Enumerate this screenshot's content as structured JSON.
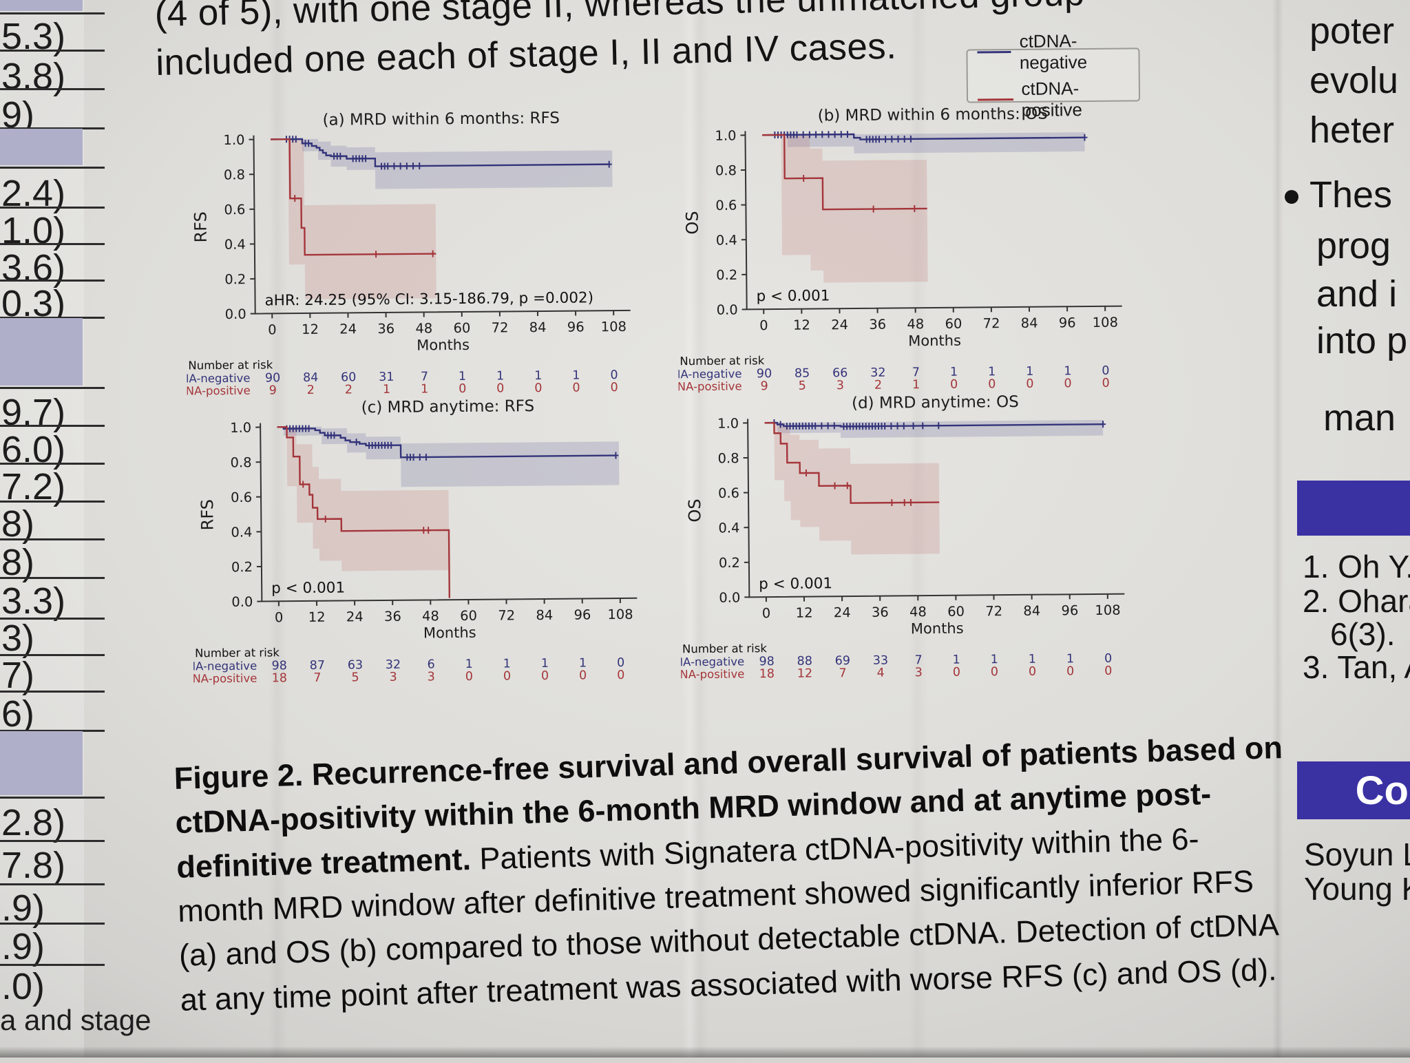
{
  "page": {
    "top_text_line1": "(4 of 5), with one stage II, whereas the unmatched group",
    "top_text_line2": "included one each of stage I, II and IV cases.",
    "caption_bold": "Figure 2. Recurrence-free survival and overall survival of patients based on ctDNA-positivity within the 6-month MRD window and at anytime post-definitive treatment.",
    "caption_rest": " Patients with Signatera ctDNA-positivity within the 6- month MRD window after definitive treatment showed significantly inferior RFS (a) and OS (b) compared to those without detectable ctDNA. Detection of ctDNA at any time point after treatment was associated with worse RFS (c) and OS (d)."
  },
  "legend": {
    "items": [
      {
        "label": "ctDNA-negative",
        "color": "#33337a"
      },
      {
        "label": "ctDNA-positive",
        "color": "#a4353a"
      }
    ]
  },
  "colors": {
    "negative": "#33337a",
    "positive": "#a4353a",
    "ci_negative": "rgba(85,85,150,0.20)",
    "ci_positive": "rgba(190,105,105,0.20)",
    "axis": "#333333",
    "band_lavender": "#b0afc9",
    "bar_indigo": "#3a31a3"
  },
  "chart_data": [
    {
      "id": "a",
      "type": "line",
      "subtype": "kaplan-meier",
      "title": "(a) MRD within 6 months: RFS",
      "ylabel": "RFS",
      "xlabel": "Months",
      "xticks": [
        0,
        12,
        24,
        36,
        48,
        60,
        72,
        84,
        96,
        108
      ],
      "yticks": [
        0.0,
        0.2,
        0.4,
        0.6,
        0.8,
        1.0
      ],
      "xlim": [
        0,
        114
      ],
      "ylim": [
        0,
        1.02
      ],
      "annotation": "aHR: 24.25 (95% CI: 3.15-186.79, p =0.002)",
      "series": [
        {
          "name": "ctDNA-negative",
          "points": [
            [
              0,
              1.0
            ],
            [
              10,
              0.975
            ],
            [
              13,
              0.96
            ],
            [
              14.5,
              0.95
            ],
            [
              15.5,
              0.935
            ],
            [
              16.5,
              0.92
            ],
            [
              17.5,
              0.905
            ],
            [
              19,
              0.9
            ],
            [
              24,
              0.885
            ],
            [
              33,
              0.84
            ],
            [
              107,
              0.84
            ]
          ],
          "censors": [
            5,
            6,
            7,
            8,
            11,
            12,
            20,
            21,
            22,
            26,
            27,
            28,
            29,
            30,
            35,
            36,
            37,
            39,
            41,
            43,
            45,
            47,
            107
          ],
          "ci": [
            [
              10,
              0.93,
              1.0
            ],
            [
              15,
              0.88,
              0.985
            ],
            [
              19,
              0.84,
              0.96
            ],
            [
              24,
              0.82,
              0.95
            ],
            [
              33,
              0.71,
              0.92
            ],
            [
              108,
              0.72,
              0.93
            ]
          ]
        },
        {
          "name": "ctDNA-positive",
          "points": [
            [
              0,
              1.0
            ],
            [
              6,
              0.66
            ],
            [
              9.5,
              0.49
            ],
            [
              10.5,
              0.335
            ],
            [
              52,
              0.335
            ]
          ],
          "censors": [
            7.5,
            33,
            51
          ],
          "ci": [
            [
              5.5,
              0.28,
              1.0
            ],
            [
              10.5,
              0.08,
              0.62
            ],
            [
              52,
              0.09,
              0.61
            ]
          ]
        }
      ],
      "at_risk": {
        "label": "Number at risk",
        "rows": [
          {
            "name": "ctDNA-negative",
            "values": [
              90,
              84,
              60,
              31,
              7,
              1,
              1,
              1,
              1,
              0
            ]
          },
          {
            "name": "ctDNA-positive",
            "values": [
              9,
              2,
              2,
              1,
              1,
              0,
              0,
              0,
              0,
              0
            ]
          }
        ]
      }
    },
    {
      "id": "b",
      "type": "line",
      "subtype": "kaplan-meier",
      "title": "(b) MRD within 6 months: OS",
      "ylabel": "OS",
      "xlabel": "Months",
      "xticks": [
        0,
        12,
        24,
        36,
        48,
        60,
        72,
        84,
        96,
        108
      ],
      "yticks": [
        0.0,
        0.2,
        0.4,
        0.6,
        0.8,
        1.0
      ],
      "xlim": [
        0,
        114
      ],
      "ylim": [
        0,
        1.02
      ],
      "annotation": "p < 0.001",
      "series": [
        {
          "name": "ctDNA-negative",
          "points": [
            [
              0,
              1.0
            ],
            [
              29,
              0.98
            ],
            [
              31,
              0.97
            ],
            [
              102,
              0.97
            ]
          ],
          "censors": [
            4,
            5,
            6,
            7,
            8,
            9,
            10,
            11,
            13,
            15,
            17,
            19,
            21,
            23,
            25,
            27,
            33,
            34,
            35,
            36,
            37,
            39,
            41,
            43,
            45,
            47,
            102
          ],
          "ci": [
            [
              8,
              0.93,
              1.0
            ],
            [
              29,
              0.89,
              1.0
            ],
            [
              102,
              0.89,
              1.0
            ]
          ]
        },
        {
          "name": "ctDNA-positive",
          "points": [
            [
              0,
              1.0
            ],
            [
              7,
              0.75
            ],
            [
              19,
              0.57
            ],
            [
              52,
              0.57
            ]
          ],
          "censors": [
            13,
            35,
            48
          ],
          "ci": [
            [
              6,
              0.31,
              1.0
            ],
            [
              15,
              0.22,
              0.92
            ],
            [
              19,
              0.15,
              0.85
            ],
            [
              52,
              0.15,
              0.85
            ]
          ]
        }
      ],
      "at_risk": {
        "label": "Number at risk",
        "rows": [
          {
            "name": "ctDNA-negative",
            "values": [
              90,
              85,
              66,
              32,
              7,
              1,
              1,
              1,
              1,
              0
            ]
          },
          {
            "name": "ctDNA-positive",
            "values": [
              9,
              5,
              3,
              2,
              1,
              0,
              0,
              0,
              0,
              0
            ]
          }
        ]
      }
    },
    {
      "id": "c",
      "type": "line",
      "subtype": "kaplan-meier",
      "title": "(c) MRD anytime: RFS",
      "ylabel": "RFS",
      "xlabel": "Months",
      "xticks": [
        0,
        12,
        24,
        36,
        48,
        60,
        72,
        84,
        96,
        108
      ],
      "yticks": [
        0.0,
        0.2,
        0.4,
        0.6,
        0.8,
        1.0
      ],
      "xlim": [
        0,
        114
      ],
      "ylim": [
        0,
        1.02
      ],
      "annotation": "p < 0.001",
      "series": [
        {
          "name": "ctDNA-negative",
          "points": [
            [
              0,
              1.0
            ],
            [
              2,
              0.99
            ],
            [
              12,
              0.98
            ],
            [
              13.5,
              0.965
            ],
            [
              15,
              0.95
            ],
            [
              20,
              0.935
            ],
            [
              21.5,
              0.92
            ],
            [
              23,
              0.91
            ],
            [
              26,
              0.9
            ],
            [
              28,
              0.89
            ],
            [
              39,
              0.82
            ],
            [
              107,
              0.82
            ]
          ],
          "censors": [
            3,
            4,
            5,
            6,
            7,
            8,
            9,
            10,
            16,
            17,
            18,
            25,
            29,
            30,
            31,
            32,
            33,
            34,
            35,
            36,
            41,
            42,
            43,
            45,
            47,
            107
          ],
          "ci": [
            [
              2,
              0.95,
              1.0
            ],
            [
              14,
              0.9,
              0.99
            ],
            [
              22,
              0.85,
              0.96
            ],
            [
              28,
              0.81,
              0.94
            ],
            [
              39,
              0.65,
              0.9
            ],
            [
              108,
              0.66,
              0.9
            ]
          ]
        },
        {
          "name": "ctDNA-positive",
          "points": [
            [
              0,
              1.0
            ],
            [
              3,
              0.94
            ],
            [
              5,
              0.83
            ],
            [
              7,
              0.67
            ],
            [
              10,
              0.61
            ],
            [
              11,
              0.535
            ],
            [
              12.5,
              0.47
            ],
            [
              20,
              0.4
            ],
            [
              54,
              0.01
            ]
          ],
          "censors": [
            8,
            15,
            46,
            47.5
          ],
          "ci": [
            [
              3,
              0.66,
              1.0
            ],
            [
              6,
              0.45,
              0.9
            ],
            [
              11,
              0.3,
              0.77
            ],
            [
              13,
              0.23,
              0.7
            ],
            [
              20,
              0.17,
              0.63
            ],
            [
              54,
              0.17,
              0.63
            ]
          ]
        }
      ],
      "at_risk": {
        "label": "Number at risk",
        "rows": [
          {
            "name": "ctDNA-negative",
            "values": [
              98,
              87,
              63,
              32,
              6,
              1,
              1,
              1,
              1,
              0
            ]
          },
          {
            "name": "ctDNA-positive",
            "values": [
              18,
              7,
              5,
              3,
              3,
              0,
              0,
              0,
              0,
              0
            ]
          }
        ]
      }
    },
    {
      "id": "d",
      "type": "line",
      "subtype": "kaplan-meier",
      "title": "(d) MRD anytime: OS",
      "ylabel": "OS",
      "xlabel": "Months",
      "xticks": [
        0,
        12,
        24,
        36,
        48,
        60,
        72,
        84,
        96,
        108
      ],
      "yticks": [
        0.0,
        0.2,
        0.4,
        0.6,
        0.8,
        1.0
      ],
      "xlim": [
        0,
        114
      ],
      "ylim": [
        0,
        1.02
      ],
      "annotation": "p < 0.001",
      "series": [
        {
          "name": "ctDNA-negative",
          "points": [
            [
              0,
              1.0
            ],
            [
              4,
              0.99
            ],
            [
              6,
              0.98
            ],
            [
              24,
              0.975
            ],
            [
              107,
              0.975
            ]
          ],
          "censors": [
            3,
            5,
            7,
            8,
            9,
            10,
            11,
            12,
            13,
            14,
            15,
            16,
            18,
            20,
            22,
            25,
            26,
            27,
            28,
            29,
            30,
            31,
            32,
            33,
            34,
            35,
            36,
            37,
            38,
            40,
            42,
            44,
            47,
            50,
            55,
            107
          ],
          "ci": [
            [
              4,
              0.94,
              1.0
            ],
            [
              24,
              0.91,
              1.0
            ],
            [
              107,
              0.91,
              1.0
            ]
          ]
        },
        {
          "name": "ctDNA-positive",
          "points": [
            [
              0,
              1.0
            ],
            [
              3,
              0.94
            ],
            [
              5,
              0.88
            ],
            [
              7,
              0.77
            ],
            [
              11,
              0.71
            ],
            [
              17,
              0.635
            ],
            [
              27,
              0.535
            ],
            [
              55,
              0.535
            ]
          ],
          "censors": [
            13,
            22,
            26,
            40,
            44,
            46
          ],
          "ci": [
            [
              3,
              0.67,
              1.0
            ],
            [
              6,
              0.55,
              0.98
            ],
            [
              8,
              0.44,
              0.93
            ],
            [
              11,
              0.4,
              0.9
            ],
            [
              17,
              0.32,
              0.85
            ],
            [
              27,
              0.24,
              0.76
            ],
            [
              55,
              0.24,
              0.76
            ]
          ]
        }
      ],
      "at_risk": {
        "label": "Number at risk",
        "rows": [
          {
            "name": "ctDNA-negative",
            "values": [
              98,
              88,
              69,
              33,
              7,
              1,
              1,
              1,
              1,
              0
            ]
          },
          {
            "name": "ctDNA-positive",
            "values": [
              18,
              12,
              7,
              4,
              3,
              0,
              0,
              0,
              0,
              0
            ]
          }
        ]
      }
    }
  ],
  "left_column": {
    "rows": [
      {
        "band": true
      },
      {
        "v": "5.3)"
      },
      {
        "v": "3.8)"
      },
      {
        "v": "9)"
      },
      {
        "band": true
      },
      {
        "v": "2.4)"
      },
      {
        "v": "1.0)"
      },
      {
        "v": "3.6)"
      },
      {
        "v": "0.3)"
      },
      {
        "band": true
      },
      {
        "v": "9.7)"
      },
      {
        "v": "6.0)"
      },
      {
        "v": "7.2)"
      },
      {
        "v": "8)"
      },
      {
        "v": "8)"
      },
      {
        "v": "3.3)"
      },
      {
        "v": "3)"
      },
      {
        "v": "7)"
      },
      {
        "v": "6)"
      },
      {
        "band": true
      },
      {
        "v": "2.8)"
      },
      {
        "v": "7.8)"
      },
      {
        "v": ".9)"
      },
      {
        "v": ".9)"
      },
      {
        "v": ".0)"
      }
    ],
    "footer": "a and stage"
  },
  "right_column": {
    "items": [
      {
        "type": "text",
        "text": "poter"
      },
      {
        "type": "text",
        "text": "evolu"
      },
      {
        "type": "text",
        "text": "heter"
      },
      {
        "type": "bullet",
        "text": "Thes"
      },
      {
        "type": "text",
        "text": "prog"
      },
      {
        "type": "text",
        "text": "and i"
      },
      {
        "type": "text",
        "text": "into p"
      },
      {
        "type": "text",
        "text": "man"
      },
      {
        "type": "bar",
        "label": ""
      },
      {
        "type": "text",
        "text": "1. Oh Y."
      },
      {
        "type": "text",
        "text": "2. Ohara"
      },
      {
        "type": "text",
        "text": "6(3)."
      },
      {
        "type": "text",
        "text": "3. Tan, A"
      },
      {
        "type": "bar",
        "label": "Co"
      },
      {
        "type": "text",
        "text": "Soyun L"
      },
      {
        "type": "text",
        "text": "Young K"
      }
    ]
  }
}
